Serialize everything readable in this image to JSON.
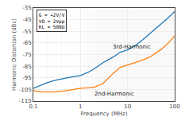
{
  "chart_data": {
    "type": "line",
    "xlabel": "Frequency (MHz)",
    "ylabel": "Harmonic Distortion (dBc)",
    "log": "x",
    "grid": true,
    "xlim": [
      0.1,
      100
    ],
    "ylim": [
      -115,
      -35
    ],
    "xticks": [
      0.1,
      1,
      10,
      100
    ],
    "yticks": [
      -35,
      -45,
      -55,
      -65,
      -75,
      -85,
      -95,
      -105,
      -115
    ],
    "x": [
      0.1,
      0.15,
      0.2,
      0.3,
      0.5,
      0.7,
      1.0,
      1.5,
      2.0,
      3.0,
      5.0,
      7.0,
      10.0,
      15.0,
      20.0,
      30.0,
      50.0,
      70.0,
      100.0
    ],
    "series": [
      {
        "name": "3rd-Harmonic",
        "values": [
          -104,
          -101,
          -99,
          -97,
          -95,
          -94,
          -93,
          -90,
          -87,
          -82,
          -77,
          -73,
          -71,
          -67,
          -63,
          -57,
          -49,
          -44,
          -38
        ]
      },
      {
        "name": "2nd-Harmonic",
        "values": [
          -106,
          -107,
          -107,
          -107,
          -106,
          -105,
          -104,
          -103.5,
          -103,
          -100,
          -91,
          -86,
          -84,
          -82,
          -80,
          -77,
          -71,
          -66,
          -59
        ]
      }
    ],
    "annotations": [
      "G = +2V/V",
      "VO = 2Vpp",
      "RL = 500Ω"
    ]
  }
}
